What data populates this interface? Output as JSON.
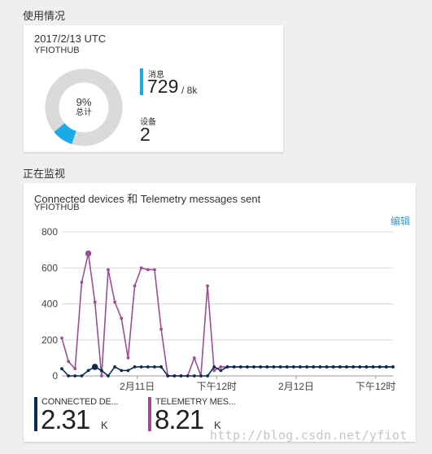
{
  "usage": {
    "section_title": "使用情况",
    "date": "2017/2/13 UTC",
    "hub": "YFIOTHUB",
    "donut": {
      "percent_label": "9%",
      "caption": "总计",
      "fraction": 0.09
    },
    "messages": {
      "label": "消息",
      "value": "729",
      "of": "/ 8k"
    },
    "devices": {
      "label": "设备",
      "value": "2"
    },
    "colors": {
      "accent": "#1aa9e9",
      "ring": "#dadada"
    }
  },
  "monitoring": {
    "section_title": "正在监视",
    "chart_title": "Connected devices 和 Telemetry messages sent",
    "hub": "YFIOTHUB",
    "edit_label": "编辑",
    "legend": [
      {
        "name": "CONNECTED DE...",
        "value": "2.31",
        "unit": "K",
        "color": "#0c2b4f"
      },
      {
        "name": "TELEMETRY MES...",
        "value": "8.21",
        "unit": "K",
        "color": "#9b4f96"
      }
    ]
  },
  "chart_data": {
    "type": "line",
    "x_ticks": [
      "2月11日",
      "下午12时",
      "2月12日",
      "下午12时"
    ],
    "ylim": [
      0,
      800
    ],
    "y_ticks": [
      0,
      200,
      400,
      600,
      800
    ],
    "grid": true,
    "series": [
      {
        "name": "CONNECTED DE...",
        "color": "#0c2b4f",
        "values": [
          40,
          0,
          0,
          0,
          30,
          50,
          30,
          0,
          50,
          30,
          30,
          50,
          50,
          50,
          50,
          50,
          0,
          0,
          0,
          0,
          0,
          0,
          0,
          50,
          30,
          50,
          50,
          50,
          50,
          50,
          50,
          50,
          50,
          50,
          50,
          50,
          50,
          50,
          50,
          50,
          50,
          50,
          50,
          50,
          50,
          50,
          50,
          50,
          50,
          50,
          50
        ]
      },
      {
        "name": "TELEMETRY MES...",
        "color": "#9b4f96",
        "values": [
          210,
          80,
          40,
          520,
          680,
          410,
          0,
          590,
          410,
          320,
          100,
          500,
          600,
          590,
          590,
          260,
          0,
          0,
          0,
          0,
          100,
          0,
          500,
          30,
          50,
          50,
          50,
          50,
          50,
          50,
          50,
          50,
          50,
          50,
          50,
          50,
          50,
          50,
          50,
          50,
          50,
          50,
          50,
          50,
          50,
          50,
          50,
          50,
          50,
          50,
          50
        ]
      }
    ]
  }
}
